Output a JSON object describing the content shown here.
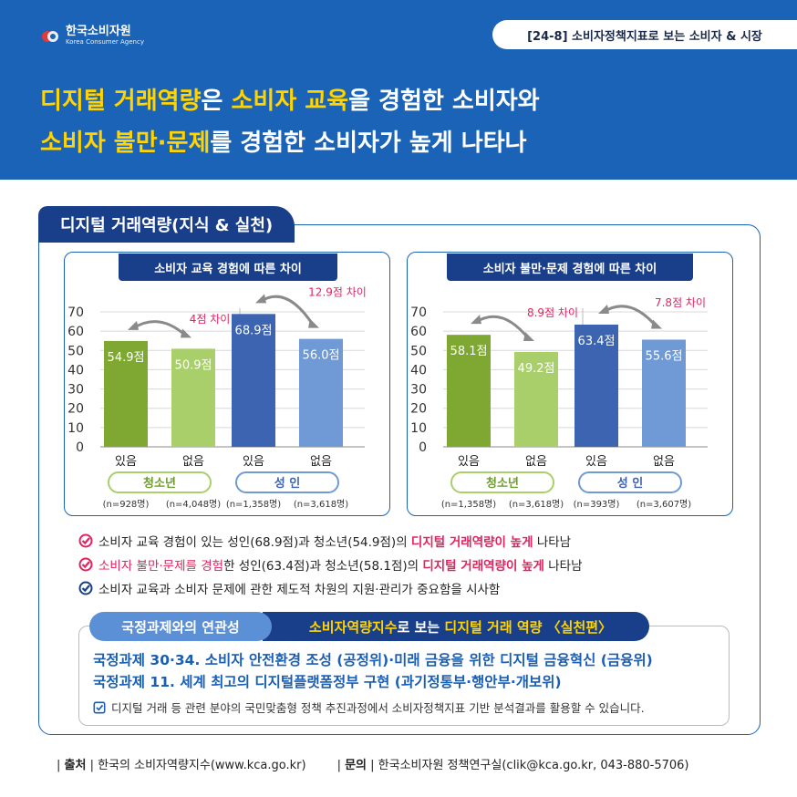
{
  "header": {
    "logo_ko": "한국소비자원",
    "logo_en": "Korea Consumer Agency",
    "tag": "[24-8] 소비자정책지표로 보는 소비자 & 시장",
    "headline_1a": "디지털 거래역량",
    "headline_1b": "은 ",
    "headline_1c": "소비자 교육",
    "headline_1d": "을 경험한 소비자와",
    "headline_2a": "소비자 불만·문제",
    "headline_2b": "를 경험한 소비자가 높게 나타나"
  },
  "panel_title": "디지털 거래역량(지식 & 실천)",
  "colors": {
    "dark_green": "#7fa832",
    "light_green": "#a9cf6b",
    "dark_blue": "#3c64b0",
    "light_blue": "#6f9ad6",
    "red": "#e0245e",
    "arrow": "#8a8a8a"
  },
  "chart_data": [
    {
      "type": "bar",
      "title": "소비자 교육 경험에 따른 차이",
      "ylim": [
        0,
        70
      ],
      "yticks": [
        "0",
        "10",
        "20",
        "30",
        "40",
        "50",
        "60",
        "70"
      ],
      "groups": [
        {
          "name": "청소년",
          "categories": [
            "있음",
            "없음"
          ],
          "values": [
            54.9,
            50.9
          ],
          "value_labels": [
            "54.9점",
            "50.9점"
          ],
          "counts": [
            "(n=928명)",
            "(n=4,048명)"
          ],
          "diff_label": "4점 차이"
        },
        {
          "name": "성 인",
          "categories": [
            "있음",
            "없음"
          ],
          "values": [
            68.9,
            56.0
          ],
          "value_labels": [
            "68.9점",
            "56.0점"
          ],
          "counts": [
            "(n=1,358명)",
            "(n=3,618명)"
          ],
          "diff_label": "12.9점 차이"
        }
      ]
    },
    {
      "type": "bar",
      "title": "소비자 불만·문제 경험에 따른 차이",
      "ylim": [
        0,
        70
      ],
      "yticks": [
        "0",
        "10",
        "20",
        "30",
        "40",
        "50",
        "60",
        "70"
      ],
      "groups": [
        {
          "name": "청소년",
          "categories": [
            "있음",
            "없음"
          ],
          "values": [
            58.1,
            49.2
          ],
          "value_labels": [
            "58.1점",
            "49.2점"
          ],
          "counts": [
            "(n=1,358명)",
            "(n=3,618명)"
          ],
          "diff_label": "8.9점 차이"
        },
        {
          "name": "성 인",
          "categories": [
            "있음",
            "없음"
          ],
          "values": [
            63.4,
            55.6
          ],
          "value_labels": [
            "63.4점",
            "55.6점"
          ],
          "counts": [
            "(n=393명)",
            "(n=3,607명)"
          ],
          "diff_label": "7.8점 차이"
        }
      ]
    }
  ],
  "bullets": [
    {
      "pre": "소비자 교육 경험이 있는 성인(68.9점)과 청소년(54.9점)의 ",
      "red": "디지털 거래역량이 높게",
      "mid": "",
      "red2": "",
      "post": " 나타남"
    },
    {
      "pre": "",
      "red": "소비자 불만·문제를 경험",
      "mid": "한 성인(63.4점)과 청소년(58.1점)의 ",
      "red2": "디지털 거래역량이 높게",
      "post": " 나타남"
    },
    {
      "pre": "소비자 교육과 소비자 문제에 관한 제도적 차원의 지원·관리가 중요함을 시사함",
      "red": "",
      "mid": "",
      "red2": "",
      "post": ""
    }
  ],
  "relation": {
    "label": "국정과제와의 연관성",
    "title_a": "소비자역량지수",
    "title_b": "로 보는 ",
    "title_c": "디지털 거래 역량 〈실천편〉",
    "task_1": "국정과제 30·34. 소비자 안전환경 조성 (공정위)·미래 금융을 위한 디지털 금융혁신 (금융위)",
    "task_2": "국정과제 11. 세계 최고의 디지털플랫폼정부 구현 (과기정통부·행안부·개보위)",
    "note": "디지털 거래 등 관련 분야의 국민맞춤형 정책 추진과정에서 소비자정책지표 기반 분석결과를 활용할 수 있습니다."
  },
  "footer": {
    "source_label": "출처",
    "source": "한국의 소비자역량지수(www.kca.go.kr)",
    "contact_label": "문의",
    "contact": "한국소비자원 정책연구실(clik@kca.go.kr, 043-880-5706)"
  }
}
